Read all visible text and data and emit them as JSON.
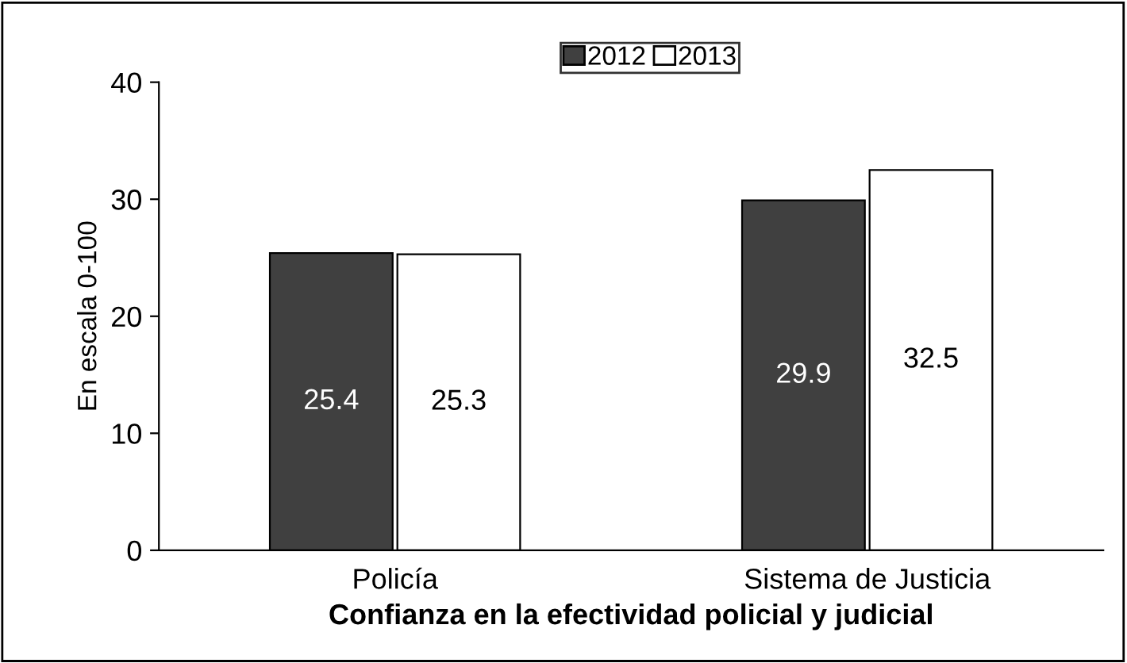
{
  "chart_data": {
    "type": "bar",
    "xlabel": "Confianza en la efectividad policial y judicial",
    "ylabel": "En escala 0-100",
    "categories": [
      "Policía",
      "Sistema de Justicia"
    ],
    "series": [
      {
        "name": "2012",
        "color": "#404040",
        "values": [
          25.4,
          29.9
        ]
      },
      {
        "name": "2013",
        "color": "#ffffff",
        "values": [
          25.3,
          32.5
        ]
      }
    ],
    "ylim": [
      0,
      40
    ],
    "yticks": [
      0,
      10,
      20,
      30,
      40
    ],
    "grid": false,
    "legend": "top",
    "data_labels": true
  }
}
